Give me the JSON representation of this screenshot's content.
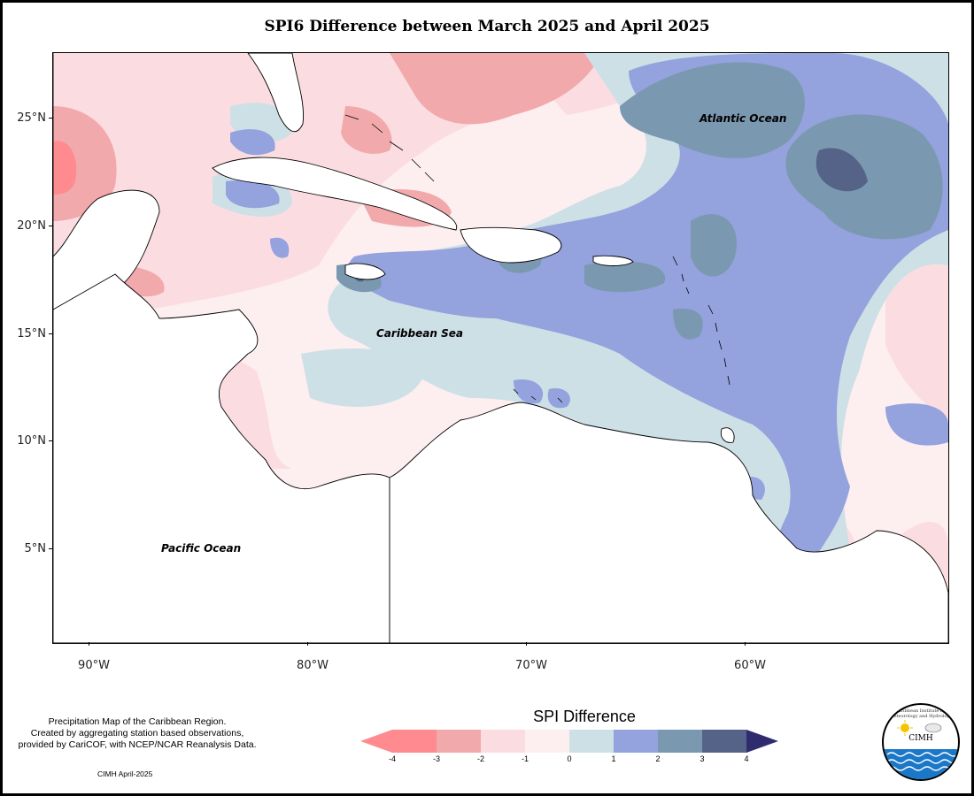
{
  "title": "SPI6 Difference between March 2025 and April 2025",
  "map": {
    "lat_labels": [
      "25°N",
      "20°N",
      "15°N",
      "10°N",
      "5°N"
    ],
    "lon_labels": [
      "90°W",
      "80°W",
      "70°W",
      "60°W"
    ],
    "regions": {
      "atlantic": "Atlantic Ocean",
      "caribbean": "Caribbean Sea",
      "pacific": "Pacific Ocean"
    },
    "colors": {
      "land": "#ffffff",
      "minus4": "#ff8a8f",
      "minus3": "#f2a9ab",
      "minus2": "#fbdde1",
      "minus1": "#fdeef0",
      "zero": "#cde0e6",
      "plus1": "#94a2dd",
      "plus2": "#7b98b1",
      "plus3": "#566389",
      "plus4": "#2e2c6e"
    }
  },
  "legend": {
    "title": "SPI Difference",
    "ticks": [
      "-4",
      "-3",
      "-2",
      "-1",
      "0",
      "1",
      "2",
      "3",
      "4"
    ]
  },
  "credit": {
    "line1": "Precipitation Map of the Caribbean Region.",
    "line2": "Created by aggregating station based observations,",
    "line3": "provided by CariCOF, with NCEP/NCAR Reanalysis Data.",
    "date": "CIMH April-2025"
  },
  "logo": {
    "ring_text": "Caribbean Institute for Meteorology and Hydrology",
    "abbr": "CIMH"
  }
}
